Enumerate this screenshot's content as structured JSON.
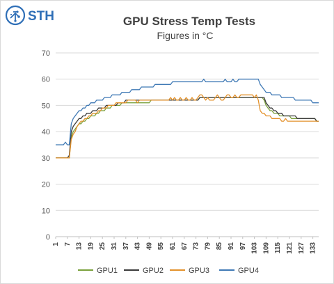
{
  "logo": {
    "text": "STH",
    "color": "#2f6fb7",
    "icon": "sth-circuit-globe-icon"
  },
  "colors": {
    "GPU1": "#7aa13c",
    "GPU2": "#3a3a3a",
    "GPU3": "#e3912b",
    "GPU4": "#3f79b5",
    "grid": "#d9d9d9",
    "axis": "#bfbfbf"
  },
  "chart_data": {
    "type": "line",
    "title": "GPU Stress Temp Tests",
    "subtitle": "Figures in °C",
    "xlabel": "",
    "ylabel": "",
    "ylim": [
      0,
      70
    ],
    "yticks": [
      0,
      10,
      20,
      30,
      40,
      50,
      60,
      70
    ],
    "x_range": [
      1,
      136
    ],
    "xticks": [
      1,
      7,
      13,
      19,
      25,
      31,
      37,
      43,
      49,
      55,
      61,
      67,
      73,
      79,
      85,
      91,
      97,
      103,
      109,
      115,
      121,
      127,
      133
    ],
    "grid": true,
    "legend": "bottom",
    "series": [
      {
        "name": "GPU1",
        "values": [
          30,
          30,
          30,
          30,
          30,
          30,
          30,
          30,
          38,
          40,
          41,
          42,
          43,
          43,
          44,
          44,
          45,
          45,
          46,
          46,
          46,
          47,
          47,
          48,
          48,
          48,
          49,
          49,
          49,
          50,
          50,
          50,
          50,
          50,
          51,
          51,
          51,
          51,
          51,
          51,
          51,
          51,
          51,
          51,
          51,
          51,
          51,
          51,
          51,
          52,
          52,
          52,
          52,
          52,
          52,
          52,
          52,
          52,
          52,
          52,
          52,
          52,
          52,
          52,
          52,
          52,
          52,
          52,
          52,
          52,
          52,
          52,
          52,
          52,
          53,
          53,
          53,
          53,
          53,
          53,
          53,
          53,
          53,
          53,
          53,
          53,
          53,
          53,
          53,
          53,
          53,
          53,
          53,
          53,
          53,
          53,
          53,
          53,
          53,
          53,
          53,
          53,
          53,
          53,
          53,
          53,
          53,
          52,
          50,
          49,
          48,
          48,
          47,
          47,
          47,
          46,
          46,
          46,
          46,
          46,
          46,
          45,
          45,
          45,
          45,
          45,
          45,
          45,
          45,
          45,
          45,
          45,
          45,
          45,
          44,
          44
        ]
      },
      {
        "name": "GPU2",
        "values": [
          30,
          30,
          30,
          30,
          30,
          30,
          30,
          31,
          40,
          42,
          43,
          44,
          45,
          45,
          46,
          46,
          47,
          47,
          47,
          48,
          48,
          48,
          49,
          49,
          49,
          49,
          50,
          50,
          50,
          50,
          50,
          50,
          51,
          51,
          51,
          51,
          52,
          52,
          52,
          52,
          52,
          52,
          52,
          52,
          52,
          52,
          52,
          52,
          52,
          52,
          52,
          52,
          52,
          52,
          52,
          52,
          52,
          52,
          52,
          52,
          52,
          52,
          52,
          52,
          52,
          52,
          52,
          52,
          52,
          52,
          52,
          52,
          52,
          52,
          53,
          53,
          53,
          53,
          53,
          53,
          53,
          53,
          53,
          53,
          53,
          53,
          53,
          53,
          53,
          53,
          53,
          53,
          53,
          53,
          53,
          53,
          53,
          53,
          53,
          53,
          53,
          53,
          53,
          53,
          53,
          53,
          53,
          53,
          51,
          50,
          49,
          49,
          48,
          48,
          47,
          47,
          47,
          46,
          46,
          46,
          46,
          46,
          46,
          46,
          45,
          45,
          45,
          45,
          45,
          45,
          45,
          45,
          45,
          45,
          44,
          44
        ]
      },
      {
        "name": "GPU3",
        "values": [
          30,
          30,
          30,
          30,
          30,
          30,
          30,
          30,
          37,
          39,
          40,
          42,
          43,
          44,
          44,
          45,
          45,
          46,
          46,
          47,
          47,
          47,
          48,
          48,
          49,
          49,
          49,
          50,
          50,
          50,
          50,
          51,
          51,
          51,
          51,
          51,
          51,
          52,
          52,
          52,
          52,
          52,
          51,
          52,
          52,
          52,
          52,
          52,
          52,
          52,
          52,
          52,
          52,
          52,
          52,
          52,
          52,
          52,
          52,
          53,
          52,
          53,
          52,
          52,
          53,
          52,
          52,
          53,
          52,
          52,
          53,
          52,
          52,
          53,
          54,
          54,
          53,
          52,
          53,
          52,
          52,
          52,
          53,
          54,
          53,
          52,
          52,
          53,
          54,
          54,
          53,
          53,
          54,
          53,
          53,
          54,
          54,
          54,
          54,
          54,
          54,
          54,
          53,
          54,
          52,
          48,
          47,
          47,
          46,
          46,
          46,
          45,
          45,
          45,
          45,
          45,
          44,
          44,
          45,
          44,
          44,
          44,
          44,
          44,
          44,
          44,
          44,
          44,
          44,
          44,
          44,
          44,
          44,
          44,
          44,
          44
        ]
      },
      {
        "name": "GPU4",
        "values": [
          35,
          35,
          35,
          35,
          35,
          36,
          35,
          35,
          43,
          45,
          46,
          47,
          48,
          48,
          49,
          49,
          50,
          50,
          51,
          51,
          51,
          52,
          52,
          52,
          52,
          53,
          53,
          53,
          53,
          54,
          54,
          54,
          54,
          54,
          55,
          55,
          55,
          55,
          55,
          56,
          56,
          56,
          56,
          56,
          57,
          57,
          57,
          57,
          57,
          57,
          57,
          58,
          58,
          58,
          58,
          58,
          58,
          58,
          58,
          58,
          59,
          59,
          59,
          59,
          59,
          59,
          59,
          59,
          59,
          59,
          59,
          59,
          59,
          59,
          59,
          59,
          60,
          59,
          59,
          59,
          59,
          59,
          59,
          59,
          59,
          59,
          59,
          60,
          59,
          59,
          59,
          60,
          59,
          59,
          60,
          60,
          60,
          60,
          60,
          60,
          60,
          60,
          60,
          60,
          60,
          58,
          57,
          56,
          55,
          55,
          55,
          54,
          54,
          54,
          54,
          54,
          53,
          53,
          53,
          53,
          53,
          53,
          53,
          52,
          52,
          52,
          52,
          52,
          52,
          52,
          52,
          52,
          51,
          51,
          51,
          51
        ]
      }
    ]
  }
}
